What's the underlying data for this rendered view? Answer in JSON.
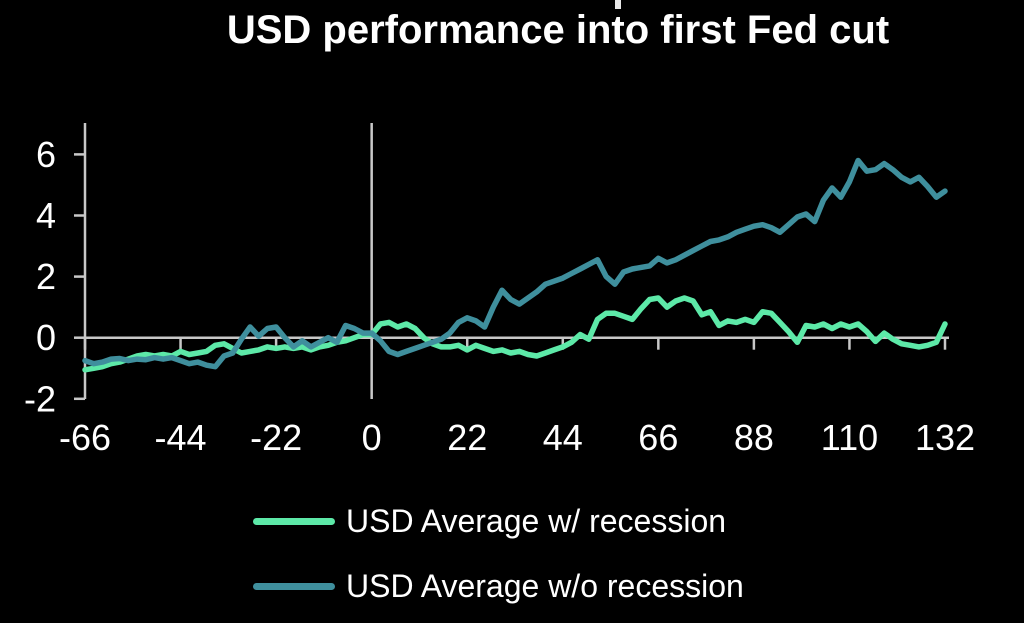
{
  "title": "USD performance into first Fed cut",
  "colors": {
    "background": "#000000",
    "text": "#ffffff",
    "axis": "#c8c8c8",
    "with_recession": "#5de9a8",
    "without_recession": "#3f8f9d"
  },
  "legend": {
    "items": [
      {
        "label": "USD Average w/ recession",
        "color": "#5de9a8"
      },
      {
        "label": "USD Average w/o recession",
        "color": "#3f8f9d"
      }
    ]
  },
  "chart_data": {
    "type": "line",
    "title": "USD performance into first Fed cut",
    "xlabel": "",
    "ylabel": "",
    "xlim": [
      -66,
      132
    ],
    "ylim": [
      -2.1,
      7.0
    ],
    "x_ticks": [
      -66,
      -44,
      -22,
      0,
      22,
      44,
      66,
      88,
      110,
      132
    ],
    "y_ticks": [
      -2,
      0,
      2,
      4,
      6
    ],
    "grid": false,
    "reference_lines": {
      "horizontal_at": 0,
      "vertical_at": 0
    },
    "legend_position": "bottom",
    "x": [
      -66,
      -64,
      -62,
      -60,
      -58,
      -56,
      -54,
      -52,
      -50,
      -48,
      -46,
      -44,
      -42,
      -40,
      -38,
      -36,
      -34,
      -32,
      -30,
      -28,
      -26,
      -24,
      -22,
      -20,
      -18,
      -16,
      -14,
      -12,
      -10,
      -8,
      -6,
      -4,
      -2,
      0,
      2,
      4,
      6,
      8,
      10,
      12,
      14,
      16,
      18,
      20,
      22,
      24,
      26,
      28,
      30,
      32,
      34,
      36,
      38,
      40,
      42,
      44,
      46,
      48,
      50,
      52,
      54,
      56,
      58,
      60,
      62,
      64,
      66,
      68,
      70,
      72,
      74,
      76,
      78,
      80,
      82,
      84,
      86,
      88,
      90,
      92,
      94,
      96,
      98,
      100,
      102,
      104,
      106,
      108,
      110,
      112,
      114,
      116,
      118,
      120,
      122,
      124,
      126,
      128,
      130,
      132
    ],
    "series": [
      {
        "name": "USD Average w/ recession",
        "color": "#5de9a8",
        "values": [
          -1.05,
          -1.0,
          -0.95,
          -0.85,
          -0.8,
          -0.7,
          -0.6,
          -0.55,
          -0.6,
          -0.55,
          -0.6,
          -0.45,
          -0.55,
          -0.5,
          -0.45,
          -0.25,
          -0.2,
          -0.35,
          -0.5,
          -0.45,
          -0.4,
          -0.3,
          -0.35,
          -0.3,
          -0.35,
          -0.3,
          -0.4,
          -0.3,
          -0.25,
          -0.15,
          -0.1,
          0.0,
          0.1,
          0.1,
          0.45,
          0.5,
          0.35,
          0.45,
          0.3,
          0.0,
          -0.2,
          -0.3,
          -0.3,
          -0.25,
          -0.4,
          -0.25,
          -0.35,
          -0.45,
          -0.4,
          -0.5,
          -0.45,
          -0.55,
          -0.6,
          -0.5,
          -0.4,
          -0.3,
          -0.15,
          0.1,
          -0.05,
          0.6,
          0.8,
          0.8,
          0.7,
          0.6,
          0.95,
          1.25,
          1.3,
          1.0,
          1.2,
          1.3,
          1.2,
          0.75,
          0.85,
          0.4,
          0.55,
          0.5,
          0.6,
          0.5,
          0.85,
          0.8,
          0.5,
          0.2,
          -0.15,
          0.4,
          0.35,
          0.45,
          0.3,
          0.45,
          0.35,
          0.45,
          0.2,
          -0.12,
          0.15,
          -0.05,
          -0.2,
          -0.25,
          -0.3,
          -0.25,
          -0.15,
          0.45
        ]
      },
      {
        "name": "USD Average w/o recession",
        "color": "#3f8f9d",
        "values": [
          -0.75,
          -0.85,
          -0.8,
          -0.7,
          -0.68,
          -0.75,
          -0.7,
          -0.72,
          -0.65,
          -0.7,
          -0.65,
          -0.75,
          -0.85,
          -0.8,
          -0.9,
          -0.95,
          -0.6,
          -0.5,
          -0.05,
          0.35,
          0.05,
          0.3,
          0.35,
          0.0,
          -0.3,
          -0.1,
          -0.3,
          -0.15,
          0.0,
          -0.15,
          0.4,
          0.3,
          0.15,
          0.15,
          -0.1,
          -0.45,
          -0.55,
          -0.45,
          -0.35,
          -0.25,
          -0.15,
          -0.05,
          0.15,
          0.5,
          0.65,
          0.55,
          0.35,
          1.0,
          1.55,
          1.25,
          1.1,
          1.3,
          1.5,
          1.75,
          1.85,
          1.95,
          2.1,
          2.25,
          2.4,
          2.55,
          2.0,
          1.75,
          2.15,
          2.25,
          2.3,
          2.35,
          2.6,
          2.45,
          2.55,
          2.7,
          2.85,
          3.0,
          3.15,
          3.2,
          3.3,
          3.45,
          3.55,
          3.65,
          3.7,
          3.6,
          3.45,
          3.7,
          3.95,
          4.05,
          3.8,
          4.5,
          4.9,
          4.6,
          5.1,
          5.8,
          5.45,
          5.5,
          5.7,
          5.5,
          5.25,
          5.1,
          5.25,
          4.95,
          4.6,
          4.8
        ]
      }
    ]
  }
}
